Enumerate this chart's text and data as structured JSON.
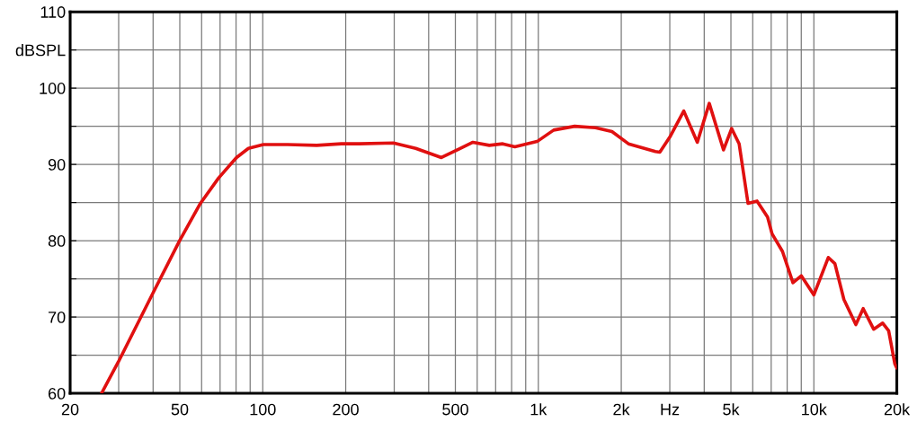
{
  "chart_data": {
    "type": "line",
    "x": [
      26,
      29.9,
      39.9,
      49.9,
      59.4,
      69.1,
      80.3,
      88.7,
      100.5,
      123,
      157,
      193,
      224,
      298,
      359,
      445,
      579,
      664,
      743,
      822,
      990,
      1137,
      1355,
      1612,
      1850,
      2124,
      2660,
      2760,
      3014,
      3372,
      3776,
      4172,
      4700,
      5032,
      5356,
      5768,
      6220,
      6792,
      7050,
      7692,
      8396,
      9006,
      10000,
      11280,
      11920,
      12850,
      14200,
      15100,
      16480,
      17770,
      18680,
      19660,
      20000
    ],
    "series": [
      {
        "color": "#e01010",
        "values": [
          60.0,
          64.1,
          73.1,
          80.0,
          84.9,
          88.2,
          90.9,
          92.1,
          92.6,
          92.6,
          92.5,
          92.7,
          92.7,
          92.8,
          92.1,
          90.9,
          92.9,
          92.5,
          92.7,
          92.3,
          93.0,
          94.5,
          95.0,
          94.8,
          94.3,
          92.7,
          91.7,
          91.6,
          93.7,
          97.0,
          92.9,
          98.0,
          91.9,
          94.7,
          92.7,
          84.9,
          85.2,
          83.1,
          80.9,
          78.6,
          74.5,
          75.4,
          72.9,
          77.8,
          77.0,
          72.3,
          69.0,
          71.1,
          68.4,
          69.2,
          68.2,
          63.9,
          63.3
        ]
      }
    ],
    "log": "x",
    "xlim": [
      20,
      20000
    ],
    "xticks": [
      20,
      {
        "value": 30,
        "label": null
      },
      {
        "value": 40,
        "label": null
      },
      50,
      {
        "value": 60,
        "label": null
      },
      {
        "value": 70,
        "label": null
      },
      {
        "value": 80,
        "label": null
      },
      {
        "value": 90,
        "label": null
      },
      100,
      200,
      {
        "value": 300,
        "label": null
      },
      {
        "value": 400,
        "label": null
      },
      500,
      {
        "value": 600,
        "label": null
      },
      {
        "value": 700,
        "label": null
      },
      {
        "value": 800,
        "label": null
      },
      {
        "value": 900,
        "label": null
      },
      {
        "value": 1000,
        "label": "1k"
      },
      {
        "value": 2000,
        "label": "2k"
      },
      {
        "value": 3000,
        "label": "Hz"
      },
      {
        "value": 4000,
        "label": null
      },
      {
        "value": 5000,
        "label": "5k"
      },
      {
        "value": 6000,
        "label": null
      },
      {
        "value": 7000,
        "label": null
      },
      {
        "value": 8000,
        "label": null
      },
      {
        "value": 9000,
        "label": null
      },
      {
        "value": 10000,
        "label": "10k"
      },
      {
        "value": 20000,
        "label": "20k"
      }
    ],
    "ylim": [
      60,
      110
    ],
    "yticks": [
      60,
      {
        "value": 65,
        "label": null
      },
      70,
      {
        "value": 75,
        "label": null
      },
      80,
      {
        "value": 85,
        "label": null
      },
      90,
      {
        "value": 95,
        "label": null
      },
      100,
      {
        "value": 105,
        "label": "dBSPL"
      },
      110
    ],
    "grid": true,
    "marker": "none",
    "line_style": "solid"
  }
}
